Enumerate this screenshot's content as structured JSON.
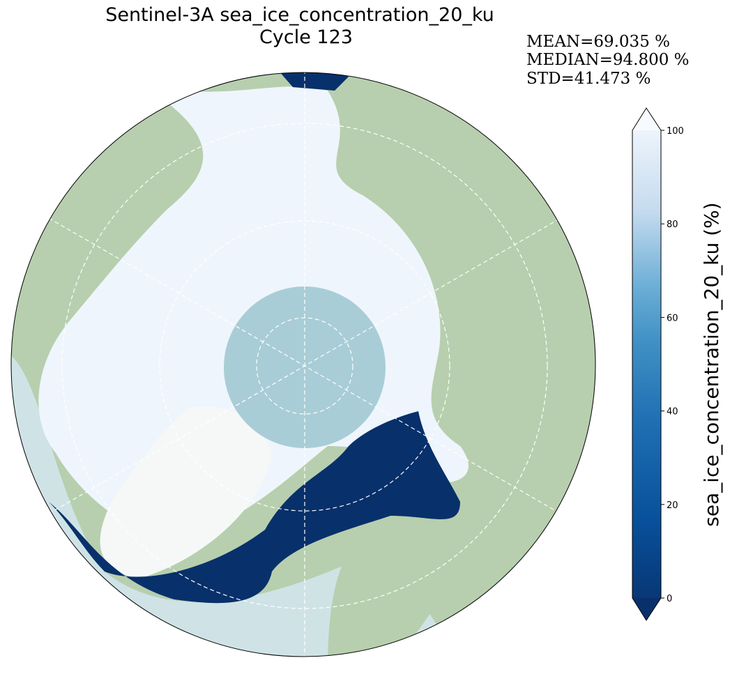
{
  "title": "Sentinel-3A sea_ice_concentration_20_ku",
  "subtitle": "Cycle 123",
  "stats": [
    "MEAN=69.035 %",
    "MEDIAN=94.800 %",
    "STD=41.473 %"
  ],
  "colorbar": {
    "label": "sea_ice_concentration_20_ku (%)",
    "lim": [
      0,
      100
    ],
    "ticks": [
      0,
      20,
      40,
      60,
      80,
      100
    ]
  }
}
